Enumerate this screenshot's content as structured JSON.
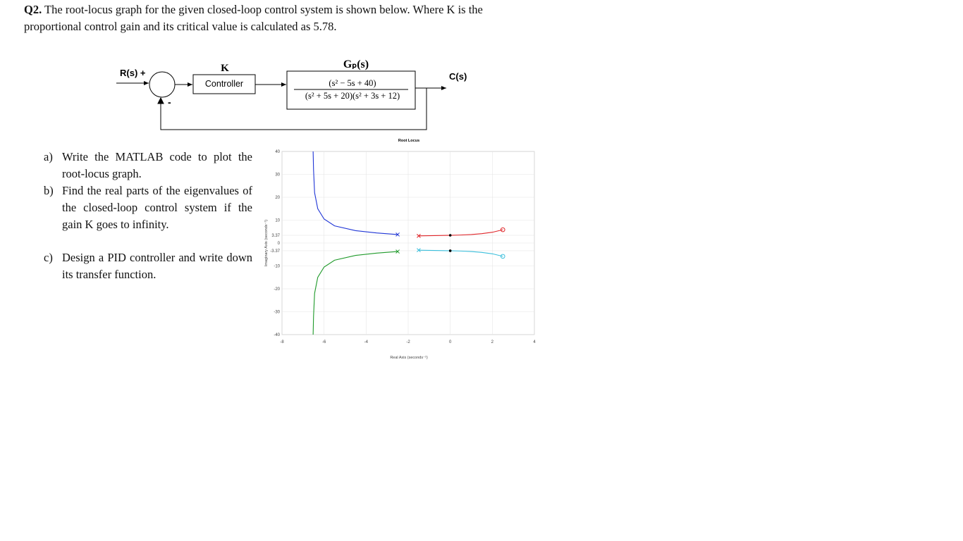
{
  "question": {
    "number": "Q2.",
    "text": "The root-locus graph for the given closed-loop control system is shown below. Where K is the proportional control gain and its critical value is calculated as 5.78."
  },
  "diagram": {
    "input": "R(s) +",
    "feedback_sign": "-",
    "gain": "K",
    "controller": "Controller",
    "plant": "Gₚ(s)",
    "numerator": "(s² − 5s + 40)",
    "denominator": "(s² + 5s + 20)(s² + 3s + 12)",
    "output": "C(s)"
  },
  "parts": [
    {
      "label": "a)",
      "text": "Write the MATLAB code to plot the root-locus graph."
    },
    {
      "label": "b)",
      "text": "Find the real parts of the eigenvalues of the closed-loop control system if the gain K goes to infinity."
    },
    {
      "label": "c)",
      "text": "Design a PID controller and write down its transfer function."
    }
  ],
  "chart_data": {
    "type": "line",
    "title": "Root Locus",
    "xlabel": "Real Axis (seconds⁻¹)",
    "ylabel": "Imaginary Axis (seconds⁻¹)",
    "xlim": [
      -8,
      4
    ],
    "ylim": [
      -40,
      40
    ],
    "xticks": [
      -8,
      -6,
      -4,
      -2,
      0,
      2,
      4
    ],
    "yticks": [
      -40,
      -30,
      -20,
      -10,
      -3.37,
      0,
      3.37,
      10,
      20,
      30,
      40
    ],
    "grid": true,
    "series": [
      {
        "color": "#1f35d6",
        "start_marker": "x",
        "end_marker": null,
        "x": [
          -2.5,
          -3.5,
          -4.5,
          -5.5,
          -6,
          -6.3,
          -6.45,
          -6.5,
          -6.52
        ],
        "values": [
          3.71,
          4.4,
          5.4,
          7.5,
          10.5,
          15,
          22,
          32,
          40
        ]
      },
      {
        "color": "#1f9a2a",
        "start_marker": "x",
        "end_marker": null,
        "x": [
          -2.5,
          -3.5,
          -4.5,
          -5.5,
          -6,
          -6.3,
          -6.45,
          -6.5,
          -6.52
        ],
        "values": [
          -3.71,
          -4.4,
          -5.4,
          -7.5,
          -10.5,
          -15,
          -22,
          -32,
          -40
        ]
      },
      {
        "color": "#e0262a",
        "start_marker": "x",
        "end_marker": "o",
        "x": [
          -1.5,
          -1,
          -0.5,
          0,
          0.5,
          1,
          1.5,
          2,
          2.5
        ],
        "values": [
          3.12,
          3.2,
          3.28,
          3.37,
          3.5,
          3.7,
          4.1,
          4.7,
          5.81
        ]
      },
      {
        "color": "#3bbfdc",
        "start_marker": "x",
        "end_marker": "o",
        "x": [
          -1.5,
          -1,
          -0.5,
          0,
          0.5,
          1,
          1.5,
          2,
          2.5
        ],
        "values": [
          -3.12,
          -3.2,
          -3.28,
          -3.37,
          -3.5,
          -3.7,
          -4.1,
          -4.7,
          -5.81
        ]
      }
    ],
    "critical_points": {
      "color": "#000000",
      "x": [
        0,
        0
      ],
      "y": [
        3.37,
        -3.37
      ]
    }
  }
}
